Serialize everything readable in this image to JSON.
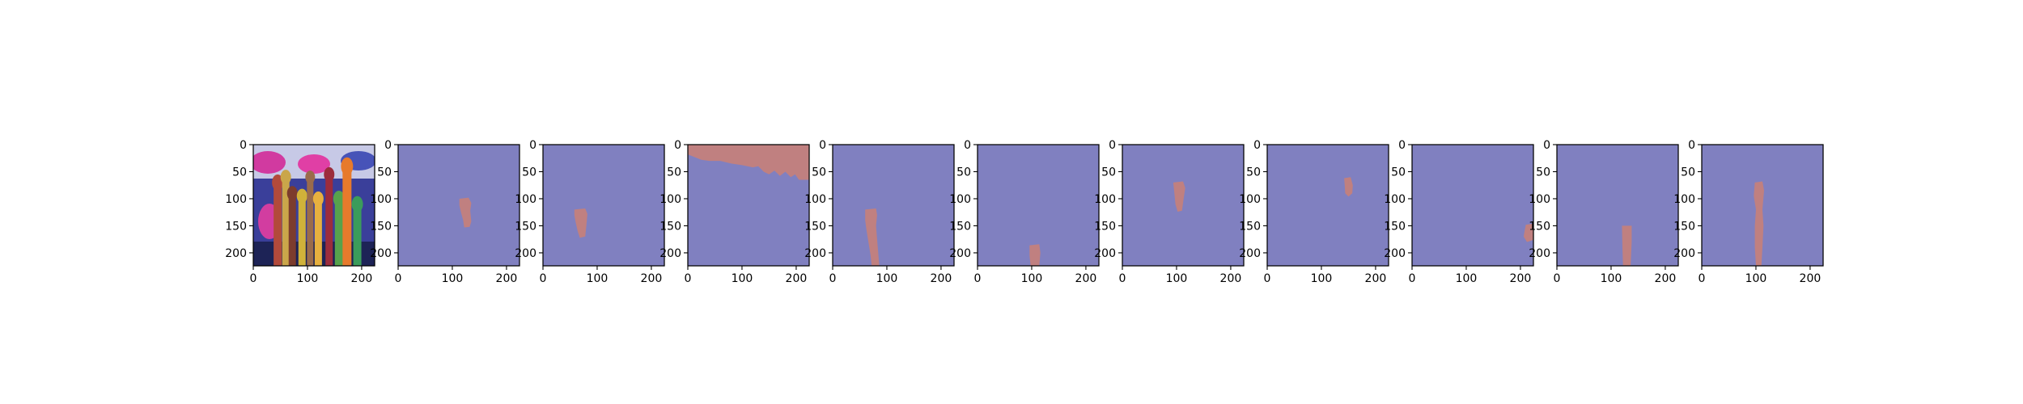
{
  "chart_data": {
    "type": "image-grid",
    "description_free": true,
    "colors": {
      "mask_background": "#8080c0",
      "mask_foreground": "#c08080",
      "photo_background": "#3a3f9a"
    },
    "shared_axes": {
      "x_ticks": [
        0,
        100,
        200
      ],
      "y_ticks": [
        0,
        50,
        100,
        150,
        200
      ],
      "xlim": [
        0,
        224
      ],
      "ylim": [
        224,
        0
      ]
    },
    "panels": [
      {
        "kind": "photo"
      },
      {
        "kind": "mask",
        "regions": [
          {
            "points": [
              [
                113,
                100
              ],
              [
                130,
                98
              ],
              [
                135,
                108
              ],
              [
                133,
                122
              ],
              [
                135,
                142
              ],
              [
                132,
                152
              ],
              [
                122,
                153
              ],
              [
                120,
                140
              ],
              [
                116,
                125
              ],
              [
                113,
                112
              ]
            ]
          }
        ]
      },
      {
        "kind": "mask",
        "regions": [
          {
            "points": [
              [
                58,
                120
              ],
              [
                78,
                118
              ],
              [
                82,
                128
              ],
              [
                80,
                150
              ],
              [
                78,
                170
              ],
              [
                68,
                172
              ],
              [
                64,
                160
              ],
              [
                60,
                142
              ],
              [
                58,
                130
              ]
            ]
          }
        ]
      },
      {
        "kind": "mask",
        "regions": [
          {
            "points": [
              [
                0,
                0
              ],
              [
                224,
                0
              ],
              [
                224,
                65
              ],
              [
                205,
                65
              ],
              [
                198,
                55
              ],
              [
                190,
                60
              ],
              [
                180,
                50
              ],
              [
                170,
                58
              ],
              [
                160,
                48
              ],
              [
                150,
                55
              ],
              [
                140,
                50
              ],
              [
                130,
                40
              ],
              [
                120,
                42
              ],
              [
                100,
                38
              ],
              [
                80,
                35
              ],
              [
                60,
                30
              ],
              [
                40,
                30
              ],
              [
                25,
                28
              ],
              [
                10,
                22
              ],
              [
                0,
                18
              ]
            ]
          }
        ]
      },
      {
        "kind": "mask",
        "regions": [
          {
            "points": [
              [
                60,
                120
              ],
              [
                80,
                118
              ],
              [
                82,
                130
              ],
              [
                80,
                150
              ],
              [
                82,
                175
              ],
              [
                84,
                200
              ],
              [
                86,
                224
              ],
              [
                72,
                224
              ],
              [
                70,
                205
              ],
              [
                66,
                180
              ],
              [
                62,
                155
              ],
              [
                60,
                140
              ]
            ]
          }
        ]
      },
      {
        "kind": "mask",
        "regions": [
          {
            "points": [
              [
                96,
                186
              ],
              [
                114,
                184
              ],
              [
                116,
                200
              ],
              [
                114,
                224
              ],
              [
                98,
                224
              ],
              [
                96,
                205
              ]
            ]
          }
        ]
      },
      {
        "kind": "mask",
        "regions": [
          {
            "points": [
              [
                94,
                70
              ],
              [
                112,
                68
              ],
              [
                116,
                80
              ],
              [
                113,
                100
              ],
              [
                110,
                122
              ],
              [
                102,
                124
              ],
              [
                98,
                110
              ],
              [
                96,
                90
              ]
            ]
          }
        ]
      },
      {
        "kind": "mask",
        "regions": [
          {
            "points": [
              [
                142,
                62
              ],
              [
                154,
                60
              ],
              [
                158,
                75
              ],
              [
                157,
                90
              ],
              [
                150,
                96
              ],
              [
                144,
                90
              ],
              [
                143,
                75
              ]
            ]
          }
        ]
      },
      {
        "kind": "mask",
        "regions": [
          {
            "points": [
              [
                210,
                148
              ],
              [
                224,
                146
              ],
              [
                224,
                176
              ],
              [
                212,
                180
              ],
              [
                206,
                170
              ],
              [
                208,
                158
              ]
            ]
          }
        ]
      },
      {
        "kind": "mask",
        "regions": [
          {
            "points": [
              [
                120,
                150
              ],
              [
                138,
                150
              ],
              [
                138,
                180
              ],
              [
                136,
                224
              ],
              [
                122,
                224
              ],
              [
                121,
                190
              ]
            ]
          }
        ]
      },
      {
        "kind": "mask",
        "regions": [
          {
            "points": [
              [
                98,
                70
              ],
              [
                112,
                68
              ],
              [
                115,
                85
              ],
              [
                112,
                120
              ],
              [
                114,
                150
              ],
              [
                112,
                190
              ],
              [
                110,
                224
              ],
              [
                100,
                224
              ],
              [
                98,
                190
              ],
              [
                98,
                150
              ],
              [
                100,
                120
              ],
              [
                96,
                95
              ]
            ]
          }
        ]
      }
    ]
  }
}
